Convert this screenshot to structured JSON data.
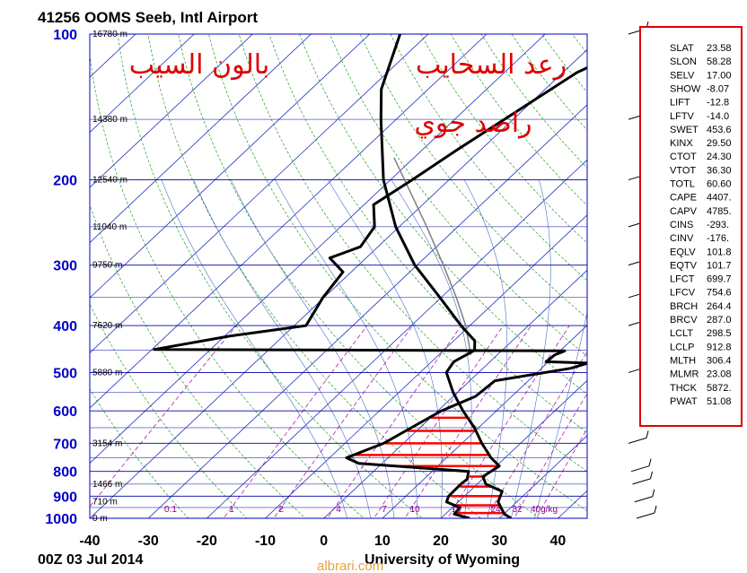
{
  "chart_data": {
    "type": "skew-t log-p sounding",
    "title": "41256 OOMS Seeb, Intl Airport",
    "timestamp": "00Z 03 Jul 2014",
    "source": "University of Wyoming",
    "overlay_text": {
      "top_left": "بالون السيب",
      "top_right_1": "رعد السحايب",
      "top_right_2": "راصد جوي"
    },
    "watermark": "albrari.com",
    "pressure_ticks": [
      100,
      200,
      300,
      400,
      500,
      600,
      700,
      800,
      900,
      1000
    ],
    "temperature_ticks": [
      -40,
      -30,
      -20,
      -10,
      0,
      10,
      20,
      30,
      40
    ],
    "xlim": [
      -40,
      45
    ],
    "ylim": [
      1000,
      100
    ],
    "height_labels": [
      {
        "p": 100,
        "label": "16780 m"
      },
      {
        "p": 150,
        "label": "14380 m"
      },
      {
        "p": 200,
        "label": "12540 m"
      },
      {
        "p": 250,
        "label": "11040 m"
      },
      {
        "p": 300,
        "label": "9750 m"
      },
      {
        "p": 400,
        "label": "7620 m"
      },
      {
        "p": 500,
        "label": "5880 m"
      },
      {
        "p": 700,
        "label": "3154 m"
      },
      {
        "p": 850,
        "label": "1466 m"
      },
      {
        "p": 925,
        "label": "710 m"
      },
      {
        "p": 1000,
        "label": "0 m"
      }
    ],
    "mixing_ratio_labels": [
      "0.1",
      "1",
      "2",
      "4",
      "7",
      "10",
      "16",
      "24",
      "32",
      "40g/kg"
    ],
    "dewpoint_profile": [
      {
        "p": 100,
        "t": -30.4
      },
      {
        "p": 120,
        "t": -37.6
      },
      {
        "p": 150,
        "t": -41.5
      },
      {
        "p": 175,
        "t": -44.2
      },
      {
        "p": 200,
        "t": -46.3
      },
      {
        "p": 225,
        "t": -48.4
      },
      {
        "p": 250,
        "t": -44.2
      },
      {
        "p": 275,
        "t": -43.0
      },
      {
        "p": 290,
        "t": -46.2
      },
      {
        "p": 310,
        "t": -41.4
      },
      {
        "p": 350,
        "t": -40.2
      },
      {
        "p": 400,
        "t": -38.0
      },
      {
        "p": 420,
        "t": -49.0
      },
      {
        "p": 448,
        "t": -59.6
      },
      {
        "p": 451,
        "t": 10.8
      },
      {
        "p": 460,
        "t": 9.8
      },
      {
        "p": 475,
        "t": 9.6
      },
      {
        "p": 478,
        "t": 17.0
      },
      {
        "p": 490,
        "t": 15.0
      },
      {
        "p": 520,
        "t": 4.3
      },
      {
        "p": 560,
        "t": 3.8
      },
      {
        "p": 600,
        "t": 0.6
      },
      {
        "p": 650,
        "t": -1.5
      },
      {
        "p": 700,
        "t": -3.4
      },
      {
        "p": 750,
        "t": -7.1
      },
      {
        "p": 770,
        "t": -4.0
      },
      {
        "p": 800,
        "t": 16.2
      },
      {
        "p": 830,
        "t": 17.4
      },
      {
        "p": 850,
        "t": 17.2
      },
      {
        "p": 900,
        "t": 17.3
      },
      {
        "p": 925,
        "t": 18.0
      },
      {
        "p": 950,
        "t": 21.3
      },
      {
        "p": 980,
        "t": 21.5
      },
      {
        "p": 1000,
        "t": 24.9
      }
    ],
    "temperature_profile": [
      {
        "p": 100,
        "t": -74.8
      },
      {
        "p": 130,
        "t": -68.0
      },
      {
        "p": 150,
        "t": -62.6
      },
      {
        "p": 200,
        "t": -51.2
      },
      {
        "p": 250,
        "t": -40.6
      },
      {
        "p": 300,
        "t": -30.4
      },
      {
        "p": 350,
        "t": -20.2
      },
      {
        "p": 400,
        "t": -11.5
      },
      {
        "p": 430,
        "t": -6.4
      },
      {
        "p": 450,
        "t": -4.7
      },
      {
        "p": 475,
        "t": -6.2
      },
      {
        "p": 500,
        "t": -5.5
      },
      {
        "p": 550,
        "t": -0.7
      },
      {
        "p": 600,
        "t": 4.3
      },
      {
        "p": 650,
        "t": 9.3
      },
      {
        "p": 700,
        "t": 13.4
      },
      {
        "p": 750,
        "t": 17.6
      },
      {
        "p": 780,
        "t": 20.5
      },
      {
        "p": 820,
        "t": 19.6
      },
      {
        "p": 850,
        "t": 21.5
      },
      {
        "p": 880,
        "t": 25.6
      },
      {
        "p": 925,
        "t": 26.8
      },
      {
        "p": 950,
        "t": 28.3
      },
      {
        "p": 980,
        "t": 30.1
      },
      {
        "p": 1000,
        "t": 32.0
      }
    ],
    "parcel_profile": [
      {
        "p": 460,
        "t": -4.5
      },
      {
        "p": 400,
        "t": -10.7
      },
      {
        "p": 350,
        "t": -17.4
      },
      {
        "p": 300,
        "t": -25.5
      },
      {
        "p": 250,
        "t": -35.3
      },
      {
        "p": 200,
        "t": -47.6
      },
      {
        "p": 180,
        "t": -53.4
      }
    ],
    "cape_hatch_pressures": [
      580,
      620,
      660,
      700,
      740,
      780,
      820,
      860,
      900,
      940,
      975
    ],
    "wind_barb_pressures": [
      100,
      150,
      200,
      250,
      300,
      350,
      400,
      500,
      700,
      800,
      850,
      925,
      1000
    ],
    "indices": [
      {
        "name": "SLAT",
        "value": "23.58"
      },
      {
        "name": "SLON",
        "value": "58.28"
      },
      {
        "name": "SELV",
        "value": "17.00"
      },
      {
        "name": "SHOW",
        "value": "-8.07"
      },
      {
        "name": "LIFT",
        "value": "-12.8"
      },
      {
        "name": "LFTV",
        "value": "-14.0"
      },
      {
        "name": "SWET",
        "value": "453.6"
      },
      {
        "name": "KINX",
        "value": "29.50"
      },
      {
        "name": "CTOT",
        "value": "24.30"
      },
      {
        "name": "VTOT",
        "value": "36.30"
      },
      {
        "name": "TOTL",
        "value": "60.60"
      },
      {
        "name": "CAPE",
        "value": "4407."
      },
      {
        "name": "CAPV",
        "value": "4785."
      },
      {
        "name": "CINS",
        "value": "-293."
      },
      {
        "name": "CINV",
        "value": "-176."
      },
      {
        "name": "EQLV",
        "value": "101.8"
      },
      {
        "name": "EQTV",
        "value": "101.7"
      },
      {
        "name": "LFCT",
        "value": "699.7"
      },
      {
        "name": "LFCV",
        "value": "754.6"
      },
      {
        "name": "BRCH",
        "value": "264.4"
      },
      {
        "name": "BRCV",
        "value": "287.0"
      },
      {
        "name": "LCLT",
        "value": "298.5"
      },
      {
        "name": "LCLP",
        "value": "912.8"
      },
      {
        "name": "MLTH",
        "value": "306.4"
      },
      {
        "name": "MLMR",
        "value": "23.08"
      },
      {
        "name": "THCK",
        "value": "5872."
      },
      {
        "name": "PWAT",
        "value": "51.08"
      }
    ],
    "colors": {
      "frame": "#0000c0",
      "isobar": "#0000a0",
      "isotherm": "#2030c0",
      "dry_adiabat": "#009000",
      "moist_adiabat": "#4a6fc0",
      "mixing_ratio": "#a000a0",
      "parcel": "#808080",
      "profile": "#000000",
      "cape_hatch": "#ff0000",
      "index_box": "#e00000"
    }
  }
}
